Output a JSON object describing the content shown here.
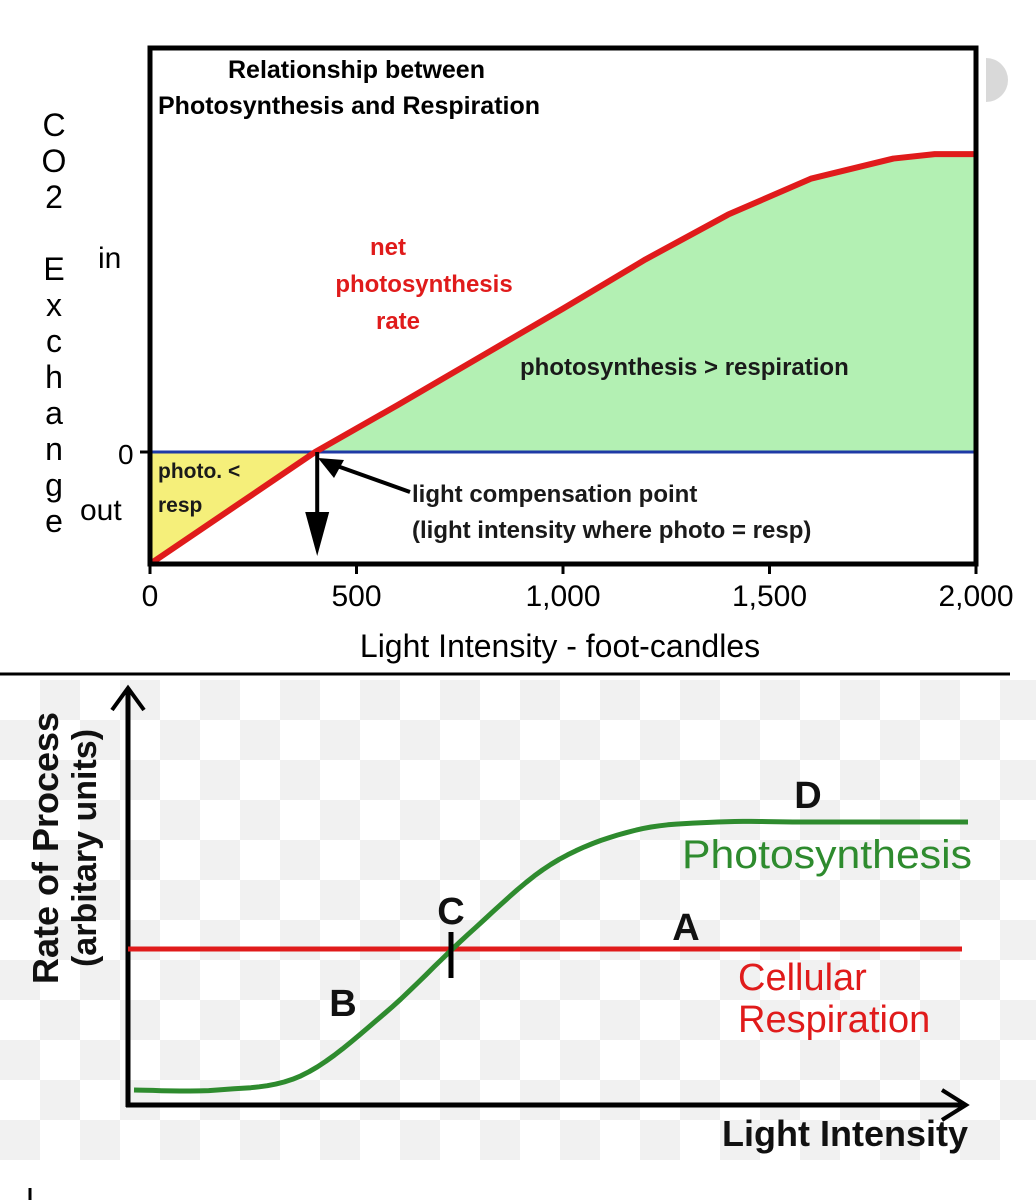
{
  "chart_data": [
    {
      "type": "area",
      "title": "Relationship between Photosynthesis and Respiration",
      "title_lines": [
        "Relationship between",
        "Photosynthesis and Respiration"
      ],
      "xlabel": "Light Intensity - foot-candles",
      "ylabel": "CO2 Exchange",
      "ylabel_letters": [
        "C",
        "O",
        "2",
        "E",
        "x",
        "c",
        "h",
        "a",
        "n",
        "g",
        "e"
      ],
      "xlim": [
        0,
        2000
      ],
      "x_ticks": [
        {
          "value": 0,
          "label": "0"
        },
        {
          "value": 500,
          "label": "500"
        },
        {
          "value": 1000,
          "label": "1,000"
        },
        {
          "value": 1500,
          "label": "1,500"
        },
        {
          "value": 2000,
          "label": "2,000"
        }
      ],
      "y_labels": {
        "in": "in",
        "zero": "0",
        "out": "out"
      },
      "grid": false,
      "series": [
        {
          "name": "net photosynthesis rate",
          "name_lines": [
            "net",
            "photosynthesis",
            "rate"
          ],
          "color": "#e01b1b",
          "x": [
            0,
            200,
            400,
            600,
            800,
            1000,
            1200,
            1400,
            1600,
            1800,
            1900,
            2000
          ],
          "y": [
            -1.0,
            -0.5,
            0.0,
            0.42,
            0.85,
            1.28,
            1.72,
            2.12,
            2.44,
            2.62,
            2.66,
            2.66
          ]
        }
      ],
      "zero_line_color": "#1f3aa6",
      "fills": {
        "above": "#b3f0b3",
        "below": "#f5ef7a"
      },
      "compensation_point_x": 400,
      "annotations": {
        "above_region": "photosynthesis > respiration",
        "below_region_lines": [
          "photo. <",
          "resp"
        ],
        "compensation_lines": [
          "light compensation point",
          "(light intensity where photo = resp)"
        ]
      }
    },
    {
      "type": "line",
      "xlabel": "Light Intensity",
      "ylabel_lines": [
        "Rate of Process",
        "(arbitary units)"
      ],
      "grid": false,
      "series": [
        {
          "name": "Photosynthesis",
          "color": "#2e8b2e",
          "x": [
            0,
            1,
            2,
            3,
            4,
            5,
            6,
            7,
            8,
            9,
            10
          ],
          "y": [
            0.05,
            0.05,
            0.1,
            0.32,
            0.6,
            0.85,
            0.97,
            1.0,
            1.0,
            1.0,
            1.0
          ]
        },
        {
          "name_lines": [
            "Cellular",
            "Respiration"
          ],
          "color": "#e01b1b",
          "x": [
            0,
            10
          ],
          "y": [
            0.55,
            0.55
          ]
        }
      ],
      "point_labels": {
        "A": "A",
        "B": "B",
        "C": "C",
        "D": "D"
      }
    }
  ]
}
